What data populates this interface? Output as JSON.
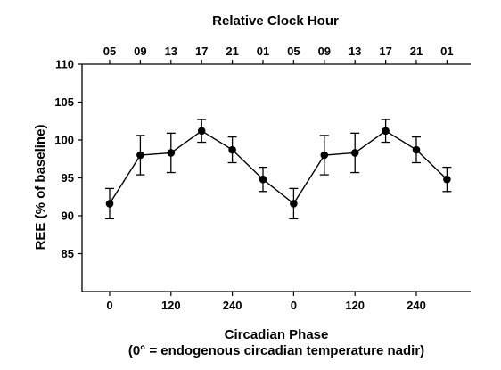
{
  "chart_data": {
    "type": "line",
    "title": "Relative Clock Hour",
    "xlabel": "Circadian Phase",
    "xlabel_note": "(0° = endogenous circadian temperature nadir)",
    "ylabel": "REE (% of baseline)",
    "ylim": [
      80,
      110
    ],
    "y_ticks": [
      "85",
      "90",
      "95",
      "100",
      "105",
      "110"
    ],
    "y_tick_values": [
      85,
      90,
      95,
      100,
      105,
      110
    ],
    "bottom_ticks": [
      "0",
      "120",
      "240",
      "0",
      "120",
      "240"
    ],
    "bottom_tick_index": [
      0,
      2,
      4,
      6,
      8,
      10
    ],
    "top_ticks": [
      "05",
      "09",
      "13",
      "17",
      "21",
      "01",
      "05",
      "09",
      "13",
      "17",
      "21",
      "01"
    ],
    "grid": false,
    "series": [
      {
        "values": [
          91.6,
          98.0,
          98.3,
          101.2,
          98.7,
          94.8,
          91.6,
          98.0,
          98.3,
          101.2,
          98.7,
          94.8
        ],
        "err_upper": [
          93.6,
          100.6,
          100.9,
          102.7,
          100.4,
          96.4,
          93.6,
          100.6,
          100.9,
          102.7,
          100.4,
          96.4
        ],
        "err_lower": [
          89.6,
          95.4,
          95.7,
          99.7,
          97.0,
          93.2,
          89.6,
          95.4,
          95.7,
          99.7,
          97.0,
          93.2
        ]
      }
    ]
  }
}
